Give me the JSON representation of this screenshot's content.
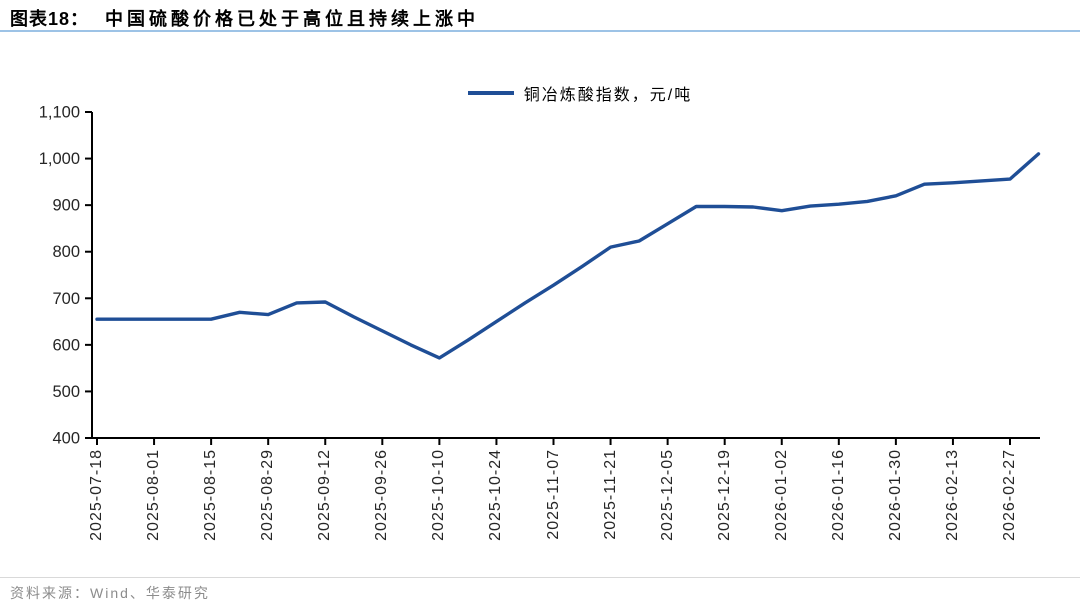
{
  "header": {
    "tag": "图表18：",
    "title": "中国硫酸价格已处于高位且持续上涨中"
  },
  "legend": {
    "label": "铜冶炼酸指数，元/吨"
  },
  "footer": {
    "source": "资料来源：Wind、华泰研究"
  },
  "colors": {
    "line": "#1F4E96",
    "title_underline": "#9DC3E6",
    "axis": "#000000",
    "tick_text": "#262626",
    "footer_text": "#8C8C8C",
    "footer_line": "#D9D9D9"
  },
  "chart_data": {
    "type": "line",
    "title": "中国硫酸价格已处于高位且持续上涨中",
    "series": [
      {
        "name": "铜冶炼酸指数，元/吨",
        "x": [
          "2025-07-18",
          "2025-07-25",
          "2025-08-01",
          "2025-08-08",
          "2025-08-15",
          "2025-08-22",
          "2025-08-29",
          "2025-09-05",
          "2025-09-12",
          "2025-09-19",
          "2025-09-26",
          "2025-10-03",
          "2025-10-10",
          "2025-10-17",
          "2025-10-24",
          "2025-10-31",
          "2025-11-07",
          "2025-11-14",
          "2025-11-21",
          "2025-11-28",
          "2025-12-05",
          "2025-12-12",
          "2025-12-19",
          "2025-12-26",
          "2026-01-02",
          "2026-01-09",
          "2026-01-16",
          "2026-01-23",
          "2026-01-30",
          "2026-02-06",
          "2026-02-13",
          "2026-02-20",
          "2026-02-27",
          "2026-03-06"
        ],
        "values": [
          655,
          655,
          655,
          655,
          655,
          670,
          665,
          690,
          692,
          660,
          630,
          600,
          572,
          610,
          650,
          690,
          728,
          768,
          810,
          823,
          860,
          897,
          897,
          896,
          888,
          898,
          902,
          908,
          920,
          945,
          948,
          952,
          956,
          1010
        ]
      }
    ],
    "x_tick_labels": [
      "2025-07-18",
      "2025-08-01",
      "2025-08-15",
      "2025-08-29",
      "2025-09-12",
      "2025-09-26",
      "2025-10-10",
      "2025-10-24",
      "2025-11-07",
      "2025-11-21",
      "2025-12-05",
      "2025-12-19",
      "2026-01-02",
      "2026-01-16",
      "2026-01-30",
      "2026-02-13",
      "2026-02-27"
    ],
    "y_ticks": [
      400,
      500,
      600,
      700,
      800,
      900,
      1000,
      1100
    ],
    "y_tick_labels": [
      "400",
      "500",
      "600",
      "700",
      "800",
      "900",
      "1,000",
      "1,100"
    ],
    "ylim": [
      400,
      1100
    ],
    "xlabel": "",
    "ylabel": "",
    "grid": false,
    "legend_position": "top-center"
  }
}
